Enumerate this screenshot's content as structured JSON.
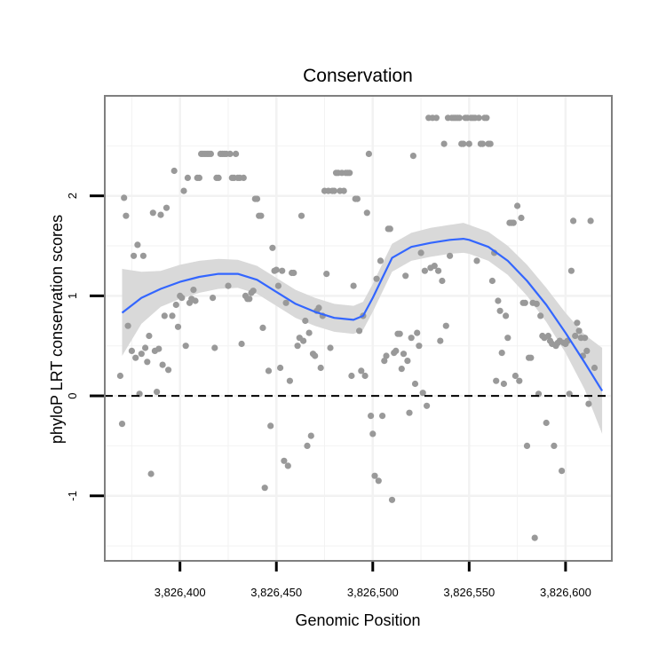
{
  "chart_data": {
    "type": "scatter",
    "title": "Conservation",
    "xlabel": "Genomic Position",
    "ylabel": "phyloP LRT conservation scores",
    "xlim": [
      3826361,
      3826624
    ],
    "ylim": [
      -1.65,
      3.0
    ],
    "x_ticks": [
      3826400,
      3826450,
      3826500,
      3826550,
      3826600
    ],
    "x_tick_labels": [
      "3,826,400",
      "3,826,450",
      "3,826,500",
      "3,826,550",
      "3,826,600"
    ],
    "y_ticks": [
      -1,
      0,
      1,
      2
    ],
    "y_tick_labels": [
      "-1",
      "0",
      "1",
      "2"
    ],
    "grid": true,
    "reference_line": {
      "y": 0,
      "style": "dashed"
    },
    "colors": {
      "points": "#999999",
      "smooth_line": "#3366ff",
      "confidence_band": "#d9d9d9",
      "panel_border": "#7f7f7f",
      "grid": "#f2f2f2"
    },
    "smooth": {
      "x": [
        3826370,
        3826380,
        3826390,
        3826400,
        3826410,
        3826420,
        3826430,
        3826440,
        3826450,
        3826460,
        3826470,
        3826480,
        3826490,
        3826495,
        3826500,
        3826505,
        3826510,
        3826520,
        3826530,
        3826540,
        3826547,
        3826550,
        3826560,
        3826570,
        3826580,
        3826590,
        3826600,
        3826610,
        3826619
      ],
      "y": [
        0.83,
        0.98,
        1.07,
        1.14,
        1.19,
        1.22,
        1.22,
        1.16,
        1.04,
        0.92,
        0.84,
        0.78,
        0.76,
        0.8,
        0.98,
        1.18,
        1.38,
        1.49,
        1.53,
        1.56,
        1.57,
        1.56,
        1.49,
        1.35,
        1.15,
        0.91,
        0.63,
        0.33,
        0.05
      ],
      "lower": [
        0.4,
        0.72,
        0.89,
        0.97,
        1.03,
        1.07,
        1.08,
        1.02,
        0.9,
        0.78,
        0.7,
        0.64,
        0.62,
        0.66,
        0.84,
        1.04,
        1.24,
        1.35,
        1.39,
        1.42,
        1.43,
        1.42,
        1.35,
        1.21,
        1.0,
        0.74,
        0.43,
        0.06,
        -0.38
      ],
      "upper": [
        1.27,
        1.24,
        1.25,
        1.31,
        1.35,
        1.37,
        1.36,
        1.3,
        1.18,
        1.06,
        0.98,
        0.92,
        0.9,
        0.94,
        1.12,
        1.32,
        1.52,
        1.63,
        1.68,
        1.71,
        1.73,
        1.71,
        1.64,
        1.5,
        1.31,
        1.08,
        0.83,
        0.61,
        0.48
      ]
    },
    "points": [
      [
        3826369,
        0.2
      ],
      [
        3826370,
        -0.28
      ],
      [
        3826371,
        1.98
      ],
      [
        3826372,
        1.8
      ],
      [
        3826373,
        0.7
      ],
      [
        3826375,
        0.45
      ],
      [
        3826376,
        1.4
      ],
      [
        3826377,
        0.38
      ],
      [
        3826378,
        1.51
      ],
      [
        3826379,
        0.02
      ],
      [
        3826380,
        0.42
      ],
      [
        3826381,
        1.4
      ],
      [
        3826382,
        0.48
      ],
      [
        3826383,
        0.34
      ],
      [
        3826384,
        0.6
      ],
      [
        3826385,
        -0.78
      ],
      [
        3826386,
        1.83
      ],
      [
        3826387,
        0.45
      ],
      [
        3826388,
        0.04
      ],
      [
        3826389,
        0.47
      ],
      [
        3826390,
        1.81
      ],
      [
        3826391,
        0.31
      ],
      [
        3826392,
        0.8
      ],
      [
        3826393,
        1.88
      ],
      [
        3826394,
        0.26
      ],
      [
        3826396,
        0.8
      ],
      [
        3826397,
        2.25
      ],
      [
        3826398,
        0.91
      ],
      [
        3826399,
        0.69
      ],
      [
        3826400,
        1.0
      ],
      [
        3826401,
        0.98
      ],
      [
        3826402,
        2.05
      ],
      [
        3826403,
        0.5
      ],
      [
        3826404,
        2.18
      ],
      [
        3826405,
        0.93
      ],
      [
        3826406,
        0.97
      ],
      [
        3826407,
        1.06
      ],
      [
        3826408,
        0.95
      ],
      [
        3826409,
        2.18
      ],
      [
        3826410,
        2.18
      ],
      [
        3826411,
        2.42
      ],
      [
        3826412,
        2.42
      ],
      [
        3826413,
        2.42
      ],
      [
        3826414,
        2.42
      ],
      [
        3826415,
        2.42
      ],
      [
        3826416,
        2.42
      ],
      [
        3826417,
        0.98
      ],
      [
        3826418,
        0.48
      ],
      [
        3826419,
        2.18
      ],
      [
        3826420,
        2.18
      ],
      [
        3826421,
        2.42
      ],
      [
        3826422,
        2.42
      ],
      [
        3826423,
        2.42
      ],
      [
        3826424,
        2.42
      ],
      [
        3826425,
        1.1
      ],
      [
        3826426,
        2.42
      ],
      [
        3826427,
        2.18
      ],
      [
        3826428,
        2.18
      ],
      [
        3826429,
        2.42
      ],
      [
        3826430,
        2.18
      ],
      [
        3826431,
        2.18
      ],
      [
        3826432,
        0.52
      ],
      [
        3826433,
        2.18
      ],
      [
        3826434,
        1.0
      ],
      [
        3826435,
        0.97
      ],
      [
        3826436,
        0.97
      ],
      [
        3826437,
        1.03
      ],
      [
        3826438,
        1.05
      ],
      [
        3826439,
        1.97
      ],
      [
        3826440,
        1.97
      ],
      [
        3826441,
        1.8
      ],
      [
        3826442,
        1.8
      ],
      [
        3826443,
        0.68
      ],
      [
        3826444,
        -0.92
      ],
      [
        3826446,
        0.25
      ],
      [
        3826447,
        -0.3
      ],
      [
        3826448,
        1.48
      ],
      [
        3826449,
        1.25
      ],
      [
        3826450,
        1.26
      ],
      [
        3826451,
        1.1
      ],
      [
        3826452,
        0.28
      ],
      [
        3826453,
        1.25
      ],
      [
        3826454,
        -0.65
      ],
      [
        3826455,
        0.93
      ],
      [
        3826456,
        -0.7
      ],
      [
        3826457,
        0.15
      ],
      [
        3826458,
        1.23
      ],
      [
        3826459,
        1.23
      ],
      [
        3826461,
        0.5
      ],
      [
        3826462,
        0.58
      ],
      [
        3826463,
        1.8
      ],
      [
        3826464,
        0.55
      ],
      [
        3826465,
        0.75
      ],
      [
        3826466,
        -0.5
      ],
      [
        3826467,
        0.63
      ],
      [
        3826468,
        -0.4
      ],
      [
        3826469,
        0.42
      ],
      [
        3826470,
        0.4
      ],
      [
        3826471,
        0.85
      ],
      [
        3826472,
        0.88
      ],
      [
        3826473,
        0.28
      ],
      [
        3826474,
        0.8
      ],
      [
        3826475,
        2.05
      ],
      [
        3826476,
        1.22
      ],
      [
        3826477,
        2.05
      ],
      [
        3826478,
        0.48
      ],
      [
        3826479,
        2.05
      ],
      [
        3826480,
        2.05
      ],
      [
        3826481,
        2.23
      ],
      [
        3826482,
        2.23
      ],
      [
        3826483,
        2.05
      ],
      [
        3826484,
        2.23
      ],
      [
        3826485,
        2.05
      ],
      [
        3826486,
        2.23
      ],
      [
        3826487,
        2.23
      ],
      [
        3826488,
        2.23
      ],
      [
        3826489,
        0.2
      ],
      [
        3826490,
        1.1
      ],
      [
        3826491,
        1.97
      ],
      [
        3826492,
        1.97
      ],
      [
        3826493,
        0.65
      ],
      [
        3826494,
        0.25
      ],
      [
        3826495,
        0.8
      ],
      [
        3826496,
        0.2
      ],
      [
        3826497,
        1.83
      ],
      [
        3826498,
        2.42
      ],
      [
        3826499,
        -0.2
      ],
      [
        3826500,
        -0.38
      ],
      [
        3826501,
        -0.8
      ],
      [
        3826502,
        1.17
      ],
      [
        3826503,
        -0.85
      ],
      [
        3826504,
        1.35
      ],
      [
        3826505,
        -0.2
      ],
      [
        3826506,
        0.35
      ],
      [
        3826507,
        0.4
      ],
      [
        3826508,
        1.67
      ],
      [
        3826509,
        1.67
      ],
      [
        3826510,
        -1.04
      ],
      [
        3826511,
        0.43
      ],
      [
        3826512,
        0.45
      ],
      [
        3826513,
        0.62
      ],
      [
        3826514,
        0.62
      ],
      [
        3826515,
        0.27
      ],
      [
        3826516,
        0.42
      ],
      [
        3826517,
        1.2
      ],
      [
        3826518,
        0.35
      ],
      [
        3826519,
        -0.17
      ],
      [
        3826520,
        0.58
      ],
      [
        3826521,
        2.4
      ],
      [
        3826522,
        0.12
      ],
      [
        3826523,
        0.63
      ],
      [
        3826524,
        0.5
      ],
      [
        3826525,
        1.43
      ],
      [
        3826526,
        0.03
      ],
      [
        3826527,
        1.25
      ],
      [
        3826528,
        -0.1
      ],
      [
        3826529,
        2.78
      ],
      [
        3826530,
        1.28
      ],
      [
        3826531,
        2.78
      ],
      [
        3826532,
        1.3
      ],
      [
        3826533,
        2.78
      ],
      [
        3826534,
        1.25
      ],
      [
        3826535,
        0.55
      ],
      [
        3826536,
        1.15
      ],
      [
        3826537,
        2.52
      ],
      [
        3826538,
        0.7
      ],
      [
        3826539,
        2.78
      ],
      [
        3826540,
        1.4
      ],
      [
        3826541,
        2.78
      ],
      [
        3826542,
        2.78
      ],
      [
        3826543,
        2.78
      ],
      [
        3826544,
        2.78
      ],
      [
        3826545,
        2.78
      ],
      [
        3826546,
        2.52
      ],
      [
        3826547,
        2.52
      ],
      [
        3826548,
        2.78
      ],
      [
        3826549,
        2.78
      ],
      [
        3826550,
        2.52
      ],
      [
        3826551,
        2.78
      ],
      [
        3826552,
        2.78
      ],
      [
        3826553,
        2.78
      ],
      [
        3826554,
        1.35
      ],
      [
        3826555,
        2.78
      ],
      [
        3826556,
        2.52
      ],
      [
        3826557,
        2.52
      ],
      [
        3826558,
        2.78
      ],
      [
        3826559,
        2.78
      ],
      [
        3826560,
        2.52
      ],
      [
        3826561,
        2.52
      ],
      [
        3826562,
        1.15
      ],
      [
        3826563,
        1.43
      ],
      [
        3826564,
        0.15
      ],
      [
        3826565,
        0.95
      ],
      [
        3826566,
        0.85
      ],
      [
        3826567,
        0.43
      ],
      [
        3826568,
        0.12
      ],
      [
        3826569,
        0.8
      ],
      [
        3826570,
        0.58
      ],
      [
        3826571,
        1.73
      ],
      [
        3826572,
        1.73
      ],
      [
        3826573,
        1.73
      ],
      [
        3826574,
        0.2
      ],
      [
        3826575,
        1.9
      ],
      [
        3826576,
        0.15
      ],
      [
        3826577,
        1.78
      ],
      [
        3826578,
        0.93
      ],
      [
        3826579,
        0.93
      ],
      [
        3826580,
        -0.5
      ],
      [
        3826581,
        0.38
      ],
      [
        3826582,
        0.38
      ],
      [
        3826583,
        0.93
      ],
      [
        3826584,
        -1.42
      ],
      [
        3826585,
        0.92
      ],
      [
        3826586,
        0.02
      ],
      [
        3826587,
        0.8
      ],
      [
        3826588,
        0.6
      ],
      [
        3826589,
        0.58
      ],
      [
        3826590,
        -0.27
      ],
      [
        3826591,
        0.6
      ],
      [
        3826592,
        0.55
      ],
      [
        3826593,
        0.52
      ],
      [
        3826594,
        -0.5
      ],
      [
        3826595,
        0.5
      ],
      [
        3826596,
        0.53
      ],
      [
        3826597,
        0.55
      ],
      [
        3826598,
        -0.75
      ],
      [
        3826599,
        0.53
      ],
      [
        3826600,
        0.52
      ],
      [
        3826601,
        0.55
      ],
      [
        3826602,
        0.02
      ],
      [
        3826603,
        1.25
      ],
      [
        3826604,
        1.75
      ],
      [
        3826605,
        0.6
      ],
      [
        3826606,
        0.73
      ],
      [
        3826607,
        0.65
      ],
      [
        3826608,
        0.58
      ],
      [
        3826609,
        0.4
      ],
      [
        3826610,
        0.58
      ],
      [
        3826611,
        0.45
      ],
      [
        3826612,
        -0.08
      ],
      [
        3826613,
        1.75
      ],
      [
        3826615,
        0.28
      ]
    ]
  }
}
